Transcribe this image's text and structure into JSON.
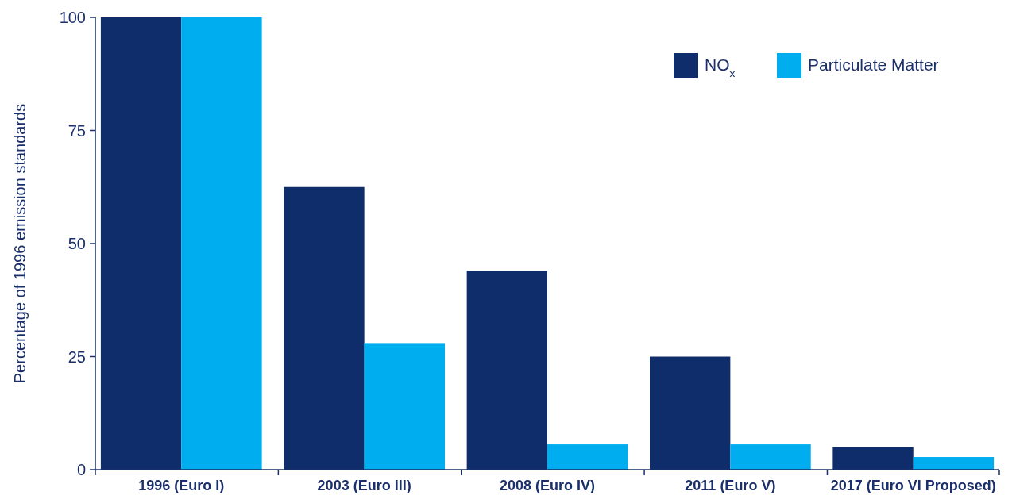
{
  "chart_data": {
    "type": "bar",
    "ylabel": "Percentage of 1996 emission standards",
    "categories": [
      "1996 (Euro I)",
      "2003 (Euro III)",
      "2008 (Euro IV)",
      "2011 (Euro V)",
      "2017 (Euro VI Proposed)"
    ],
    "series": [
      {
        "name": "NO$_{x}$",
        "color": "#0f2c6b",
        "values": [
          100,
          62.5,
          44,
          25,
          5
        ]
      },
      {
        "name": "Particulate Matter",
        "color": "#00aeef",
        "values": [
          100,
          28,
          5.6,
          5.6,
          2.8
        ]
      }
    ],
    "ylim": [
      0,
      100
    ],
    "yticks": [
      0,
      25,
      50,
      75,
      100
    ],
    "grid": false,
    "legend": "top right"
  }
}
